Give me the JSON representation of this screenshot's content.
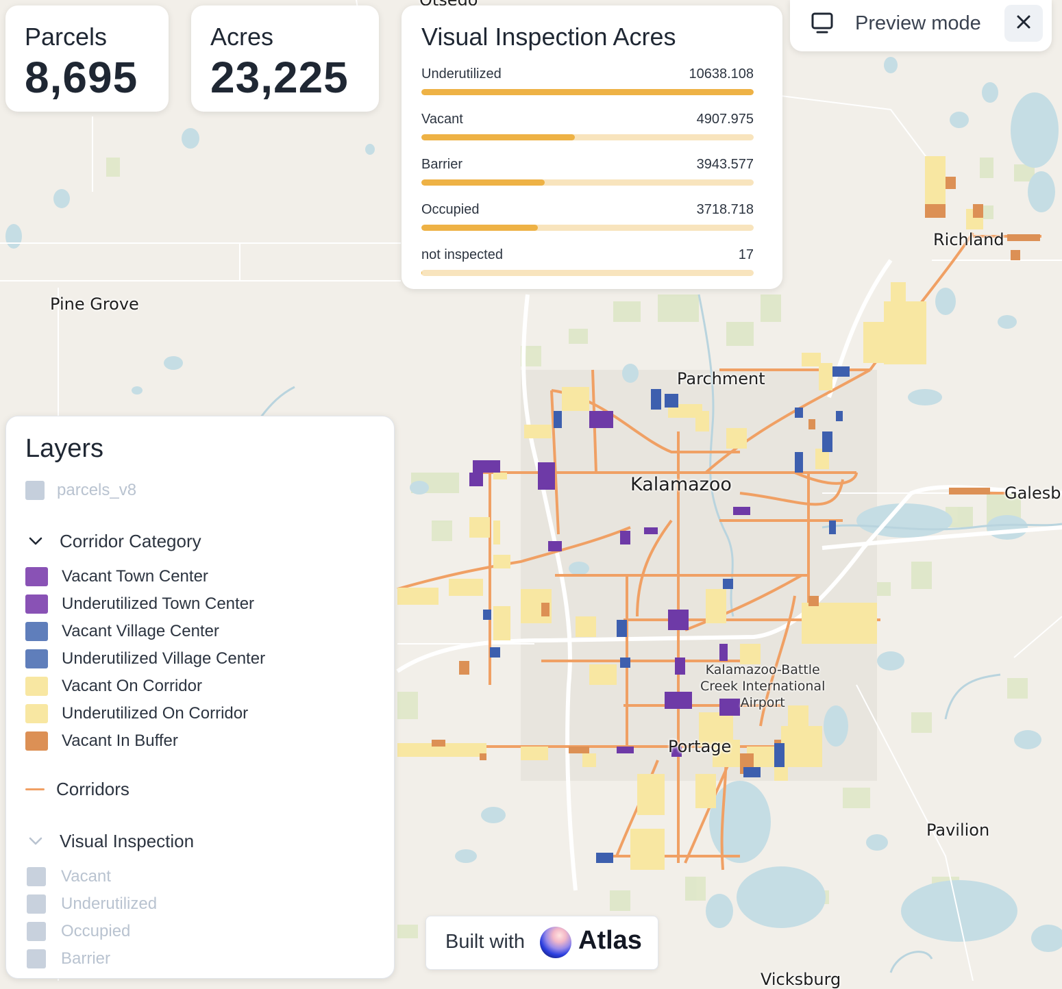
{
  "stats": {
    "parcels_label": "Parcels",
    "parcels_value": "8,695",
    "acres_label": "Acres",
    "acres_value": "23,225"
  },
  "visual_inspection": {
    "title": "Visual Inspection Acres",
    "max": 10638.108,
    "rows": [
      {
        "label": "Underutilized",
        "value_text": "10638.108",
        "fraction": 1.0
      },
      {
        "label": "Vacant",
        "value_text": "4907.975",
        "fraction": 0.461
      },
      {
        "label": "Barrier",
        "value_text": "3943.577",
        "fraction": 0.371
      },
      {
        "label": "Occupied",
        "value_text": "3718.718",
        "fraction": 0.35
      },
      {
        "label": "not inspected",
        "value_text": "17",
        "fraction": 0.0016
      }
    ],
    "bar_color": "#eeb245",
    "track_color": "#f8e4bd"
  },
  "preview": {
    "label": "Preview mode"
  },
  "layers": {
    "title": "Layers",
    "parcels_layer": "parcels_v8",
    "corridor_category": {
      "title": "Corridor Category",
      "items": [
        {
          "label": "Vacant Town Center",
          "color": "#8952b5"
        },
        {
          "label": "Underutilized Town Center",
          "color": "#8952b5"
        },
        {
          "label": "Vacant Village Center",
          "color": "#5f7ebb"
        },
        {
          "label": "Underutilized Village Center",
          "color": "#5f7ebb"
        },
        {
          "label": "Vacant On Corridor",
          "color": "#f8e7a2"
        },
        {
          "label": "Underutilized On Corridor",
          "color": "#f8e7a2"
        },
        {
          "label": "Vacant In Buffer",
          "color": "#dc9055"
        }
      ]
    },
    "corridors_label": "Corridors",
    "corridor_line_color": "#f0a064",
    "visual_inspection": {
      "title": "Visual Inspection",
      "items": [
        "Vacant",
        "Underutilized",
        "Occupied",
        "Barrier"
      ]
    }
  },
  "map_labels": {
    "otsego": "Otsego",
    "pine_grove": "Pine Grove",
    "richland": "Richland",
    "parchment": "Parchment",
    "kalamazoo": "Kalamazoo",
    "galesburg": "Galesbu",
    "airport_line1": "Kalamazoo-Battle",
    "airport_line2": "Creek International",
    "airport_line3": "Airport",
    "portage": "Portage",
    "pavilion": "Pavilion",
    "vicksburg": "Vicksburg"
  },
  "footer": {
    "built_with": "Built with",
    "brand": "Atlas"
  }
}
